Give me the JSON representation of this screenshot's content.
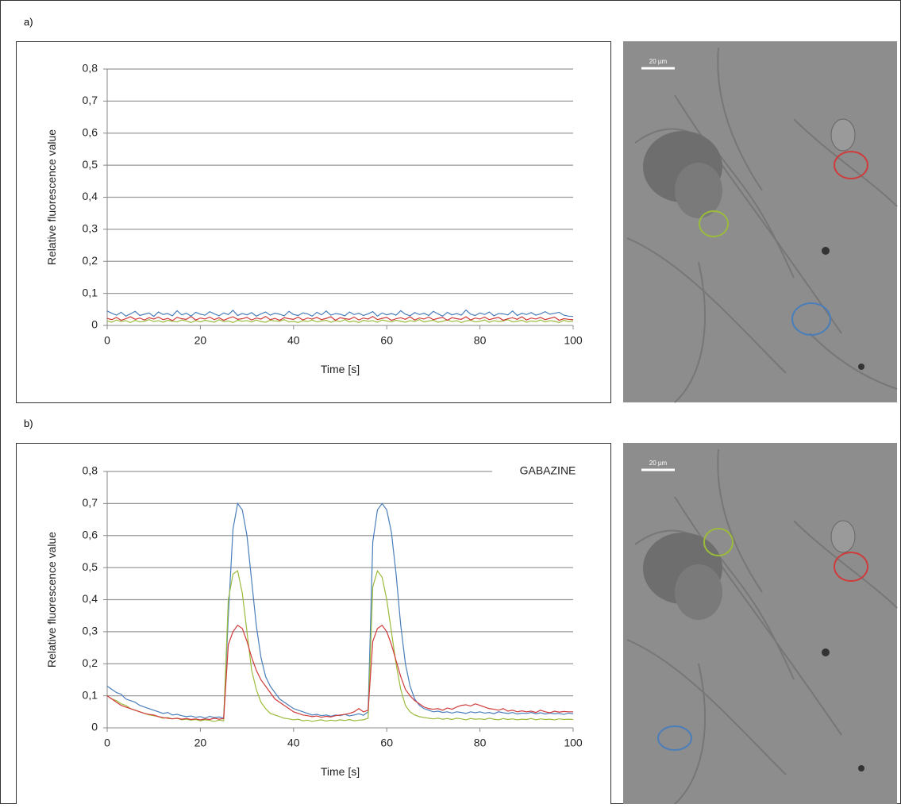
{
  "figure": {
    "panels": [
      {
        "label": "a)",
        "scale_bar": "20 µm"
      },
      {
        "label": "b)",
        "scale_bar": "20 µm"
      }
    ]
  },
  "chart_data": [
    {
      "type": "line",
      "x_label": "Time [s]",
      "y_label": "Relative fluorescence value",
      "xlim": [
        0,
        100
      ],
      "xticks": [
        0,
        20,
        40,
        60,
        80,
        100
      ],
      "ylim": [
        0,
        0.8
      ],
      "yticks": [
        0,
        {
          "value": 0.1,
          "label": "0,1"
        },
        {
          "value": 0.2,
          "label": "0,2"
        },
        {
          "value": 0.3,
          "label": "0,3"
        },
        {
          "value": 0.4,
          "label": "0,4"
        },
        {
          "value": 0.5,
          "label": "0,5"
        },
        {
          "value": 0.6,
          "label": "0,6"
        },
        {
          "value": 0.7,
          "label": "0,7"
        },
        {
          "value": 0.8,
          "label": "0,8"
        }
      ],
      "grid": true,
      "x": [
        0,
        1,
        2,
        3,
        4,
        5,
        6,
        7,
        8,
        9,
        10,
        11,
        12,
        13,
        14,
        15,
        16,
        17,
        18,
        19,
        20,
        21,
        22,
        23,
        24,
        25,
        26,
        27,
        28,
        29,
        30,
        31,
        32,
        33,
        34,
        35,
        36,
        37,
        38,
        39,
        40,
        41,
        42,
        43,
        44,
        45,
        46,
        47,
        48,
        49,
        50,
        51,
        52,
        53,
        54,
        55,
        56,
        57,
        58,
        59,
        60,
        61,
        62,
        63,
        64,
        65,
        66,
        67,
        68,
        69,
        70,
        71,
        72,
        73,
        74,
        75,
        76,
        77,
        78,
        79,
        80,
        81,
        82,
        83,
        84,
        85,
        86,
        87,
        88,
        89,
        90,
        91,
        92,
        93,
        94,
        95,
        96,
        97,
        98,
        99,
        100
      ],
      "series": [
        {
          "color": "#9bbb3b",
          "values": [
            0.014,
            0.01,
            0.017,
            0.012,
            0.015,
            0.009,
            0.016,
            0.011,
            0.013,
            0.018,
            0.012,
            0.015,
            0.01,
            0.016,
            0.013,
            0.011,
            0.017,
            0.014,
            0.009,
            0.015,
            0.011,
            0.016,
            0.013,
            0.01,
            0.018,
            0.012,
            0.014,
            0.009,
            0.016,
            0.013,
            0.015,
            0.011,
            0.017,
            0.012,
            0.01,
            0.016,
            0.014,
            0.013,
            0.018,
            0.011,
            0.013,
            0.009,
            0.015,
            0.012,
            0.017,
            0.011,
            0.014,
            0.016,
            0.01,
            0.015,
            0.012,
            0.018,
            0.011,
            0.014,
            0.009,
            0.016,
            0.013,
            0.015,
            0.01,
            0.017,
            0.014,
            0.011,
            0.016,
            0.013,
            0.01,
            0.015,
            0.012,
            0.018,
            0.011,
            0.014,
            0.016,
            0.01,
            0.013,
            0.017,
            0.012,
            0.015,
            0.009,
            0.014,
            0.016,
            0.011,
            0.013,
            0.017,
            0.01,
            0.015,
            0.012,
            0.014,
            0.018,
            0.011,
            0.013,
            0.016,
            0.01,
            0.014,
            0.012,
            0.017,
            0.011,
            0.015,
            0.013,
            0.009,
            0.016,
            0.012,
            0.014
          ]
        },
        {
          "color": "#d03a3a",
          "values": [
            0.022,
            0.018,
            0.025,
            0.016,
            0.021,
            0.027,
            0.019,
            0.023,
            0.017,
            0.024,
            0.02,
            0.026,
            0.018,
            0.022,
            0.015,
            0.025,
            0.021,
            0.019,
            0.028,
            0.017,
            0.023,
            0.02,
            0.026,
            0.018,
            0.024,
            0.016,
            0.022,
            0.027,
            0.019,
            0.021,
            0.025,
            0.017,
            0.023,
            0.02,
            0.028,
            0.018,
            0.022,
            0.016,
            0.024,
            0.021,
            0.019,
            0.026,
            0.017,
            0.023,
            0.02,
            0.025,
            0.018,
            0.022,
            0.027,
            0.016,
            0.024,
            0.021,
            0.019,
            0.026,
            0.017,
            0.023,
            0.02,
            0.028,
            0.018,
            0.022,
            0.025,
            0.016,
            0.021,
            0.024,
            0.019,
            0.027,
            0.017,
            0.023,
            0.02,
            0.026,
            0.018,
            0.022,
            0.025,
            0.016,
            0.024,
            0.021,
            0.019,
            0.027,
            0.017,
            0.023,
            0.02,
            0.026,
            0.018,
            0.022,
            0.025,
            0.016,
            0.021,
            0.024,
            0.019,
            0.027,
            0.017,
            0.023,
            0.02,
            0.025,
            0.018,
            0.022,
            0.026,
            0.016,
            0.021,
            0.019,
            0.018
          ]
        },
        {
          "color": "#4a7ebb",
          "values": [
            0.045,
            0.038,
            0.032,
            0.041,
            0.029,
            0.036,
            0.044,
            0.031,
            0.035,
            0.039,
            0.028,
            0.042,
            0.034,
            0.037,
            0.03,
            0.046,
            0.033,
            0.038,
            0.029,
            0.041,
            0.035,
            0.032,
            0.043,
            0.036,
            0.03,
            0.039,
            0.034,
            0.047,
            0.031,
            0.037,
            0.033,
            0.04,
            0.029,
            0.036,
            0.042,
            0.032,
            0.038,
            0.035,
            0.03,
            0.044,
            0.034,
            0.031,
            0.039,
            0.036,
            0.029,
            0.041,
            0.033,
            0.045,
            0.032,
            0.037,
            0.035,
            0.03,
            0.042,
            0.034,
            0.038,
            0.031,
            0.036,
            0.043,
            0.029,
            0.039,
            0.033,
            0.037,
            0.032,
            0.046,
            0.035,
            0.03,
            0.04,
            0.034,
            0.038,
            0.031,
            0.044,
            0.036,
            0.029,
            0.041,
            0.033,
            0.037,
            0.032,
            0.048,
            0.035,
            0.031,
            0.039,
            0.034,
            0.042,
            0.03,
            0.037,
            0.036,
            0.033,
            0.045,
            0.031,
            0.038,
            0.034,
            0.04,
            0.032,
            0.036,
            0.043,
            0.035,
            0.038,
            0.041,
            0.032,
            0.029,
            0.028
          ]
        }
      ]
    },
    {
      "type": "line",
      "x_label": "Time [s]",
      "y_label": "Relative fluorescence value",
      "annotation": "GABAZINE",
      "xlim": [
        0,
        100
      ],
      "xticks": [
        0,
        20,
        40,
        60,
        80,
        100
      ],
      "ylim": [
        0,
        0.8
      ],
      "yticks": [
        0,
        {
          "value": 0.1,
          "label": "0,1"
        },
        {
          "value": 0.2,
          "label": "0,2"
        },
        {
          "value": 0.3,
          "label": "0,3"
        },
        {
          "value": 0.4,
          "label": "0,4"
        },
        {
          "value": 0.5,
          "label": "0,5"
        },
        {
          "value": 0.6,
          "label": "0,6"
        },
        {
          "value": 0.7,
          "label": "0,7"
        },
        {
          "value": 0.8,
          "label": "0,8"
        }
      ],
      "grid": true,
      "x": [
        0,
        1,
        2,
        3,
        4,
        5,
        6,
        7,
        8,
        9,
        10,
        11,
        12,
        13,
        14,
        15,
        16,
        17,
        18,
        19,
        20,
        21,
        22,
        23,
        24,
        25,
        26,
        27,
        28,
        29,
        30,
        31,
        32,
        33,
        34,
        35,
        36,
        37,
        38,
        39,
        40,
        41,
        42,
        43,
        44,
        45,
        46,
        47,
        48,
        49,
        50,
        51,
        52,
        53,
        54,
        55,
        56,
        57,
        58,
        59,
        60,
        61,
        62,
        63,
        64,
        65,
        66,
        67,
        68,
        69,
        70,
        71,
        72,
        73,
        74,
        75,
        76,
        77,
        78,
        79,
        80,
        81,
        82,
        83,
        84,
        85,
        86,
        87,
        88,
        89,
        90,
        91,
        92,
        93,
        94,
        95,
        96,
        97,
        98,
        99,
        100
      ],
      "series": [
        {
          "color": "#4a7ebb",
          "values": [
            0.13,
            0.12,
            0.11,
            0.105,
            0.09,
            0.085,
            0.08,
            0.07,
            0.065,
            0.06,
            0.055,
            0.05,
            0.045,
            0.048,
            0.04,
            0.042,
            0.038,
            0.035,
            0.037,
            0.033,
            0.035,
            0.03,
            0.036,
            0.032,
            0.034,
            0.03,
            0.35,
            0.62,
            0.7,
            0.68,
            0.6,
            0.46,
            0.32,
            0.22,
            0.16,
            0.13,
            0.11,
            0.09,
            0.08,
            0.07,
            0.06,
            0.055,
            0.05,
            0.045,
            0.04,
            0.042,
            0.038,
            0.04,
            0.036,
            0.04,
            0.038,
            0.042,
            0.037,
            0.04,
            0.044,
            0.039,
            0.05,
            0.58,
            0.68,
            0.7,
            0.68,
            0.61,
            0.48,
            0.32,
            0.2,
            0.13,
            0.09,
            0.07,
            0.06,
            0.055,
            0.05,
            0.052,
            0.048,
            0.05,
            0.046,
            0.05,
            0.048,
            0.045,
            0.05,
            0.047,
            0.05,
            0.046,
            0.048,
            0.044,
            0.05,
            0.047,
            0.045,
            0.048,
            0.043,
            0.046,
            0.045,
            0.048,
            0.044,
            0.047,
            0.043,
            0.046,
            0.044,
            0.045,
            0.042,
            0.046,
            0.044
          ]
        },
        {
          "color": "#9bbb3b",
          "values": [
            0.1,
            0.09,
            0.085,
            0.075,
            0.07,
            0.06,
            0.055,
            0.05,
            0.045,
            0.04,
            0.038,
            0.035,
            0.03,
            0.032,
            0.028,
            0.03,
            0.025,
            0.027,
            0.024,
            0.026,
            0.022,
            0.025,
            0.023,
            0.02,
            0.024,
            0.022,
            0.4,
            0.48,
            0.49,
            0.42,
            0.3,
            0.18,
            0.12,
            0.08,
            0.06,
            0.045,
            0.04,
            0.035,
            0.03,
            0.028,
            0.025,
            0.027,
            0.022,
            0.024,
            0.02,
            0.023,
            0.025,
            0.021,
            0.024,
            0.022,
            0.025,
            0.023,
            0.026,
            0.022,
            0.024,
            0.025,
            0.03,
            0.44,
            0.49,
            0.47,
            0.4,
            0.3,
            0.2,
            0.12,
            0.07,
            0.05,
            0.04,
            0.035,
            0.032,
            0.03,
            0.028,
            0.03,
            0.027,
            0.029,
            0.026,
            0.03,
            0.028,
            0.025,
            0.029,
            0.027,
            0.028,
            0.026,
            0.03,
            0.027,
            0.025,
            0.029,
            0.026,
            0.028,
            0.025,
            0.027,
            0.026,
            0.029,
            0.025,
            0.028,
            0.026,
            0.027,
            0.025,
            0.028,
            0.026,
            0.027,
            0.026
          ]
        },
        {
          "color": "#d03a3a",
          "values": [
            0.1,
            0.09,
            0.08,
            0.07,
            0.065,
            0.06,
            0.055,
            0.05,
            0.045,
            0.042,
            0.04,
            0.035,
            0.032,
            0.03,
            0.028,
            0.03,
            0.027,
            0.029,
            0.026,
            0.028,
            0.025,
            0.028,
            0.026,
            0.03,
            0.027,
            0.029,
            0.26,
            0.3,
            0.32,
            0.31,
            0.27,
            0.22,
            0.18,
            0.15,
            0.13,
            0.11,
            0.09,
            0.08,
            0.07,
            0.06,
            0.05,
            0.045,
            0.04,
            0.038,
            0.035,
            0.037,
            0.033,
            0.036,
            0.034,
            0.038,
            0.04,
            0.042,
            0.045,
            0.05,
            0.06,
            0.05,
            0.055,
            0.27,
            0.31,
            0.32,
            0.3,
            0.26,
            0.21,
            0.16,
            0.12,
            0.1,
            0.085,
            0.075,
            0.065,
            0.06,
            0.058,
            0.06,
            0.055,
            0.062,
            0.058,
            0.065,
            0.07,
            0.072,
            0.068,
            0.075,
            0.07,
            0.065,
            0.06,
            0.058,
            0.055,
            0.06,
            0.052,
            0.055,
            0.05,
            0.053,
            0.05,
            0.052,
            0.048,
            0.055,
            0.05,
            0.047,
            0.052,
            0.049,
            0.051,
            0.05,
            0.05
          ]
        }
      ]
    }
  ]
}
